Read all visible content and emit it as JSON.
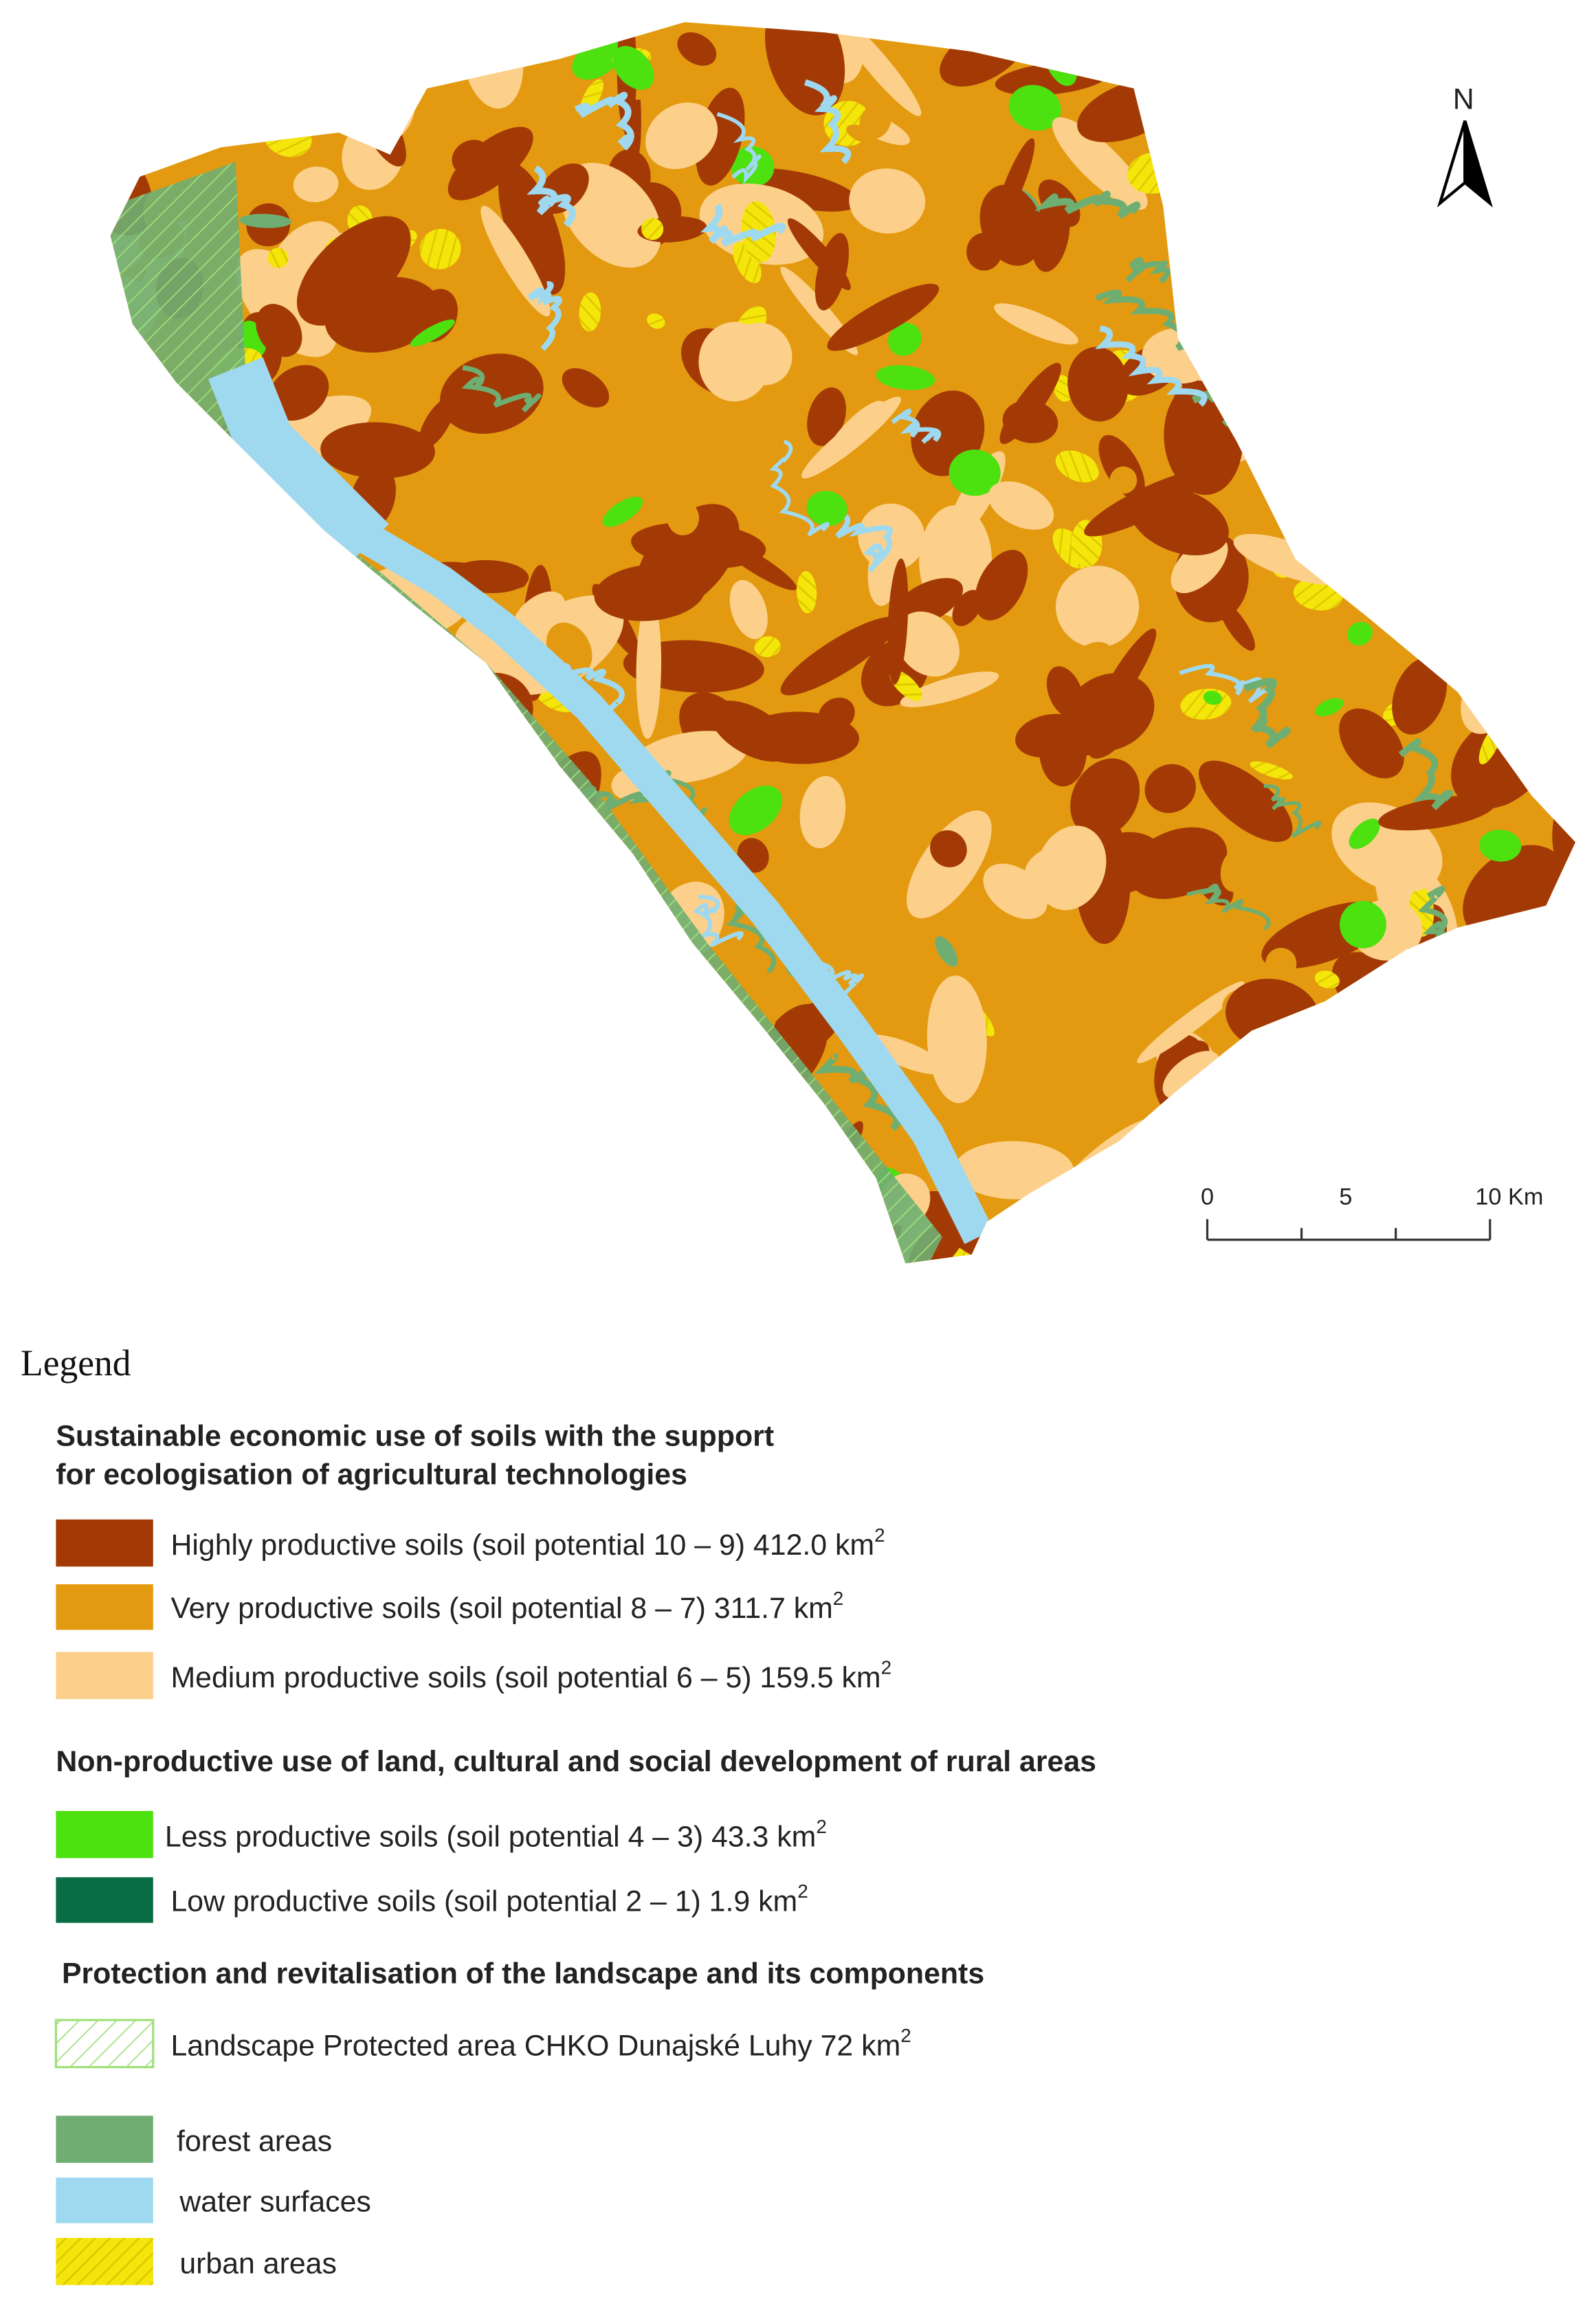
{
  "north_label": "N",
  "scale_bar": {
    "labels": [
      "0",
      "5",
      "10 Km"
    ]
  },
  "legend": {
    "title": "Legend",
    "groups": [
      {
        "heading": [
          "Sustainable economic use of soils with the support",
          "for ecologisation of agricultural technologies"
        ],
        "items": [
          {
            "label": "Highly productive soils (soil potential 10 – 9) 412.0 km",
            "sup": "2"
          },
          {
            "label": "Very productive soils (soil potential 8 – 7) 311.7 km",
            "sup": "2"
          },
          {
            "label": "Medium productive soils (soil potential 6 – 5) 159.5 km",
            "sup": "2"
          }
        ]
      },
      {
        "heading": [
          "Non-productive use of land, cultural and social development of rural areas"
        ],
        "items": [
          {
            "label": "Less productive soils (soil potential 4 – 3) 43.3 km",
            "sup": "2"
          },
          {
            "label": "Low productive soils (soil potential 2 – 1) 1.9 km",
            "sup": "2"
          }
        ]
      },
      {
        "heading": [
          "Protection and revitalisation of the landscape and its components"
        ],
        "items": [
          {
            "label": "Landscape Protected area CHKO Dunajské Luhy 72 km",
            "sup": "2"
          }
        ]
      }
    ],
    "other_items": [
      "forest areas",
      "water surfaces",
      "urban areas"
    ]
  }
}
